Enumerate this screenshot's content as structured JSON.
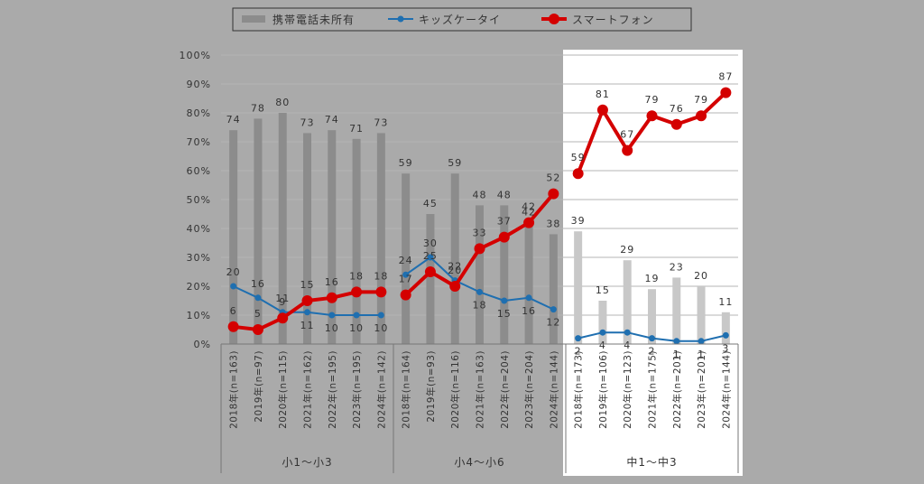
{
  "chart_data": {
    "type": "bar+line",
    "y_unit": "%",
    "ylim": [
      0,
      100
    ],
    "yticks": [
      "0%",
      "10%",
      "20%",
      "30%",
      "40%",
      "50%",
      "60%",
      "70%",
      "80%",
      "90%",
      "100%"
    ],
    "categories": [
      "2018年(n=163)",
      "2019年(n=97)",
      "2020年(n=115)",
      "2021年(n=162)",
      "2022年(n=195)",
      "2023年(n=195)",
      "2024年(n=142)",
      "2018年(n=164)",
      "2019年(n=93)",
      "2020年(n=116)",
      "2021年(n=163)",
      "2022年(n=204)",
      "2023年(n=204)",
      "2024年(n=144)",
      "2018年(n=173)",
      "2019年(n=106)",
      "2020年(n=123)",
      "2021年(n=175)",
      "2022年(n=201)",
      "2023年(n=201)",
      "2024年(n=144)"
    ],
    "groups": [
      {
        "label": "小1〜小3",
        "start": 0,
        "end": 6
      },
      {
        "label": "小4〜小6",
        "start": 7,
        "end": 13
      },
      {
        "label": "中1〜中3",
        "start": 14,
        "end": 20,
        "highlighted": true
      }
    ],
    "series": [
      {
        "name": "携帯電話未所有",
        "kind": "bar",
        "color": "#8c8c8c",
        "highlight_color": "#c8c8c8",
        "values": [
          74,
          78,
          80,
          73,
          74,
          71,
          73,
          59,
          45,
          59,
          48,
          48,
          42,
          38,
          39,
          15,
          29,
          19,
          23,
          20,
          11
        ]
      },
      {
        "name": "キッズケータイ",
        "kind": "line",
        "color": "#1f6fb0",
        "values": [
          20,
          16,
          11,
          11,
          10,
          10,
          10,
          24,
          30,
          22,
          18,
          15,
          16,
          12,
          2,
          4,
          4,
          2,
          1,
          1,
          3
        ]
      },
      {
        "name": "スマートフォン",
        "kind": "line",
        "color": "#d40000",
        "values": [
          6,
          5,
          9,
          15,
          16,
          18,
          18,
          17,
          25,
          20,
          33,
          37,
          42,
          52,
          59,
          81,
          67,
          79,
          76,
          79,
          87
        ]
      }
    ]
  }
}
